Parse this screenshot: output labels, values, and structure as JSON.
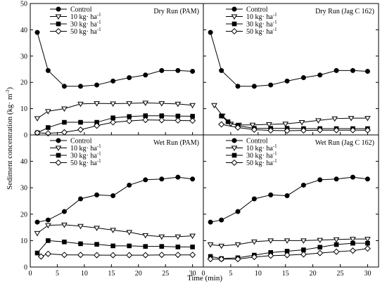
{
  "chart_data": {
    "xlabel": "Time (min)",
    "ylabel": "Sediment concentration (kg· m",
    "ylabel_sup": "-3",
    "ylabel_tail": ")",
    "xlim": [
      0,
      32
    ],
    "ylim": [
      0,
      50
    ],
    "xticks": [
      0,
      5,
      10,
      15,
      20,
      25,
      30
    ],
    "yticks": [
      0,
      10,
      20,
      30,
      40,
      50
    ],
    "series_style": [
      {
        "name": "Control",
        "marker": "circle",
        "fill": "#000000"
      },
      {
        "name": "10 kg· ha",
        "sup": "-1",
        "marker": "triangle-down",
        "fill": "#ffffff"
      },
      {
        "name": "30 kg· ha",
        "sup": "-1",
        "marker": "square",
        "fill": "#000000"
      },
      {
        "name": "50 kg· ha",
        "sup": "-1",
        "marker": "diamond",
        "fill": "#ffffff"
      }
    ],
    "panels": [
      {
        "type": "line",
        "title": "Dry Run  (PAM)",
        "series": [
          {
            "name": "Control",
            "x": [
              1.3,
              3.3,
              6.3,
              9.3,
              12.3,
              15.3,
              18.3,
              21.3,
              24.3,
              27.3,
              30.0
            ],
            "y": [
              39,
              24.5,
              18.5,
              18.5,
              19,
              20.5,
              21.8,
              22.8,
              24.5,
              24.5,
              24.2
            ]
          },
          {
            "name": "10 kg· ha",
            "x": [
              1.3,
              3.3,
              6.3,
              9.3,
              12.3,
              15.3,
              18.3,
              21.3,
              24.3,
              27.3,
              30.0
            ],
            "y": [
              6.3,
              9,
              10,
              11.8,
              12,
              11.9,
              12,
              12.2,
              12,
              11.8,
              11.3
            ]
          },
          {
            "name": "30 kg· ha",
            "x": [
              1.3,
              3.3,
              6.3,
              9.3,
              12.3,
              15.3,
              18.3,
              21.3,
              24.3,
              27.3,
              30.0
            ],
            "y": [
              0.8,
              2.8,
              4.8,
              4.8,
              4.8,
              6.5,
              7,
              7.3,
              7.3,
              7.2,
              7.1
            ]
          },
          {
            "name": "50 kg· ha",
            "x": [
              1.3,
              3.3,
              6.3,
              9.3,
              12.3,
              15.3,
              18.3,
              21.3,
              24.3,
              27.3,
              30.0
            ],
            "y": [
              0.8,
              0.6,
              1.0,
              2.0,
              3.5,
              4.8,
              5.3,
              5.7,
              5.6,
              5.5,
              5.4
            ]
          }
        ]
      },
      {
        "type": "line",
        "title": "Dry Run (Jag C 162)",
        "series": [
          {
            "name": "Control",
            "x": [
              1.3,
              3.3,
              6.3,
              9.3,
              12.3,
              15.3,
              18.3,
              21.3,
              24.3,
              27.3,
              30.0
            ],
            "y": [
              39,
              24.5,
              18.5,
              18.5,
              19,
              20.5,
              21.8,
              22.8,
              24.5,
              24.5,
              24.2
            ]
          },
          {
            "name": "10 kg· ha",
            "x": [
              2.0,
              3.5,
              5.0,
              6.5,
              9.0,
              12.0,
              15.0,
              18.0,
              21.0,
              24.0,
              27.0,
              30.0
            ],
            "y": [
              11.3,
              7.3,
              4.2,
              3.8,
              3.8,
              4.0,
              4.2,
              4.8,
              5.5,
              6.2,
              6.4,
              6.4
            ]
          },
          {
            "name": "30 kg· ha",
            "x": [
              3.3,
              4.5,
              6.3,
              9.3,
              12.3,
              15.3,
              18.3,
              21.3,
              24.3,
              27.3,
              30.0
            ],
            "y": [
              7.2,
              5.0,
              3.5,
              2.5,
              2.5,
              2.5,
              2.4,
              2.4,
              2.4,
              2.4,
              2.4
            ]
          },
          {
            "name": "50 kg· ha",
            "x": [
              3.3,
              6.3,
              9.3,
              12.3,
              15.3,
              18.3,
              21.3,
              24.3,
              27.3,
              30.0
            ],
            "y": [
              4.0,
              2.8,
              2.0,
              1.7,
              1.6,
              1.7,
              1.8,
              1.8,
              1.8,
              1.8
            ]
          }
        ]
      },
      {
        "type": "line",
        "title": "Wet Run (PAM)",
        "series": [
          {
            "name": "Control",
            "x": [
              1.3,
              3.3,
              6.3,
              9.3,
              12.3,
              15.3,
              18.3,
              21.3,
              24.3,
              27.3,
              30.0
            ],
            "y": [
              17,
              17.8,
              21,
              25.8,
              27.3,
              27,
              31,
              33,
              33.3,
              34,
              33.3
            ]
          },
          {
            "name": "10 kg· ha",
            "x": [
              1.3,
              3.3,
              6.3,
              9.3,
              12.3,
              15.3,
              18.3,
              21.3,
              24.3,
              27.3,
              30.0
            ],
            "y": [
              12.8,
              15.8,
              16,
              15.5,
              14.8,
              14,
              13.2,
              12,
              11.5,
              11.5,
              11.8
            ]
          },
          {
            "name": "30 kg· ha",
            "x": [
              1.3,
              3.3,
              6.3,
              9.3,
              12.3,
              15.3,
              18.3,
              21.3,
              24.3,
              27.3,
              30.0
            ],
            "y": [
              5.3,
              10,
              9.5,
              8.8,
              8.6,
              8.0,
              8.0,
              7.8,
              7.8,
              7.6,
              7.6
            ]
          },
          {
            "name": "50 kg· ha",
            "x": [
              2.0,
              3.3,
              6.3,
              9.3,
              12.3,
              15.3,
              18.3,
              21.3,
              24.3,
              27.3,
              30.0
            ],
            "y": [
              4.0,
              5.0,
              4.6,
              4.6,
              4.5,
              4.5,
              4.5,
              4.5,
              4.6,
              4.6,
              4.6
            ]
          }
        ]
      },
      {
        "type": "line",
        "title": "Wet Run (Jag C 162)",
        "series": [
          {
            "name": "Control",
            "x": [
              1.3,
              3.3,
              6.3,
              9.3,
              12.3,
              15.3,
              18.3,
              21.3,
              24.3,
              27.3,
              30.0
            ],
            "y": [
              17,
              17.8,
              21,
              25.8,
              27.3,
              27,
              31,
              33,
              33.3,
              34,
              33.3
            ]
          },
          {
            "name": "10 kg· ha",
            "x": [
              1.3,
              3.3,
              6.3,
              9.3,
              12.3,
              15.3,
              18.3,
              21.3,
              24.3,
              27.3,
              30.0
            ],
            "y": [
              8.5,
              8.0,
              8.5,
              9.6,
              10.0,
              10.0,
              10.0,
              10.2,
              10.4,
              10.6,
              10.6
            ]
          },
          {
            "name": "30 kg· ha",
            "x": [
              1.3,
              3.3,
              6.3,
              9.3,
              12.3,
              15.3,
              18.3,
              21.3,
              24.3,
              27.3,
              30.0
            ],
            "y": [
              4.0,
              3.2,
              3.5,
              4.5,
              5.5,
              6.0,
              6.5,
              7.5,
              8.5,
              9.0,
              9.0
            ]
          },
          {
            "name": "50 kg· ha",
            "x": [
              1.3,
              3.3,
              6.3,
              9.3,
              12.3,
              15.3,
              18.3,
              21.3,
              24.3,
              27.3,
              30.0
            ],
            "y": [
              3.0,
              3.0,
              3.0,
              3.8,
              4.3,
              4.5,
              4.8,
              5.3,
              5.8,
              6.2,
              7.0
            ]
          }
        ]
      }
    ]
  }
}
